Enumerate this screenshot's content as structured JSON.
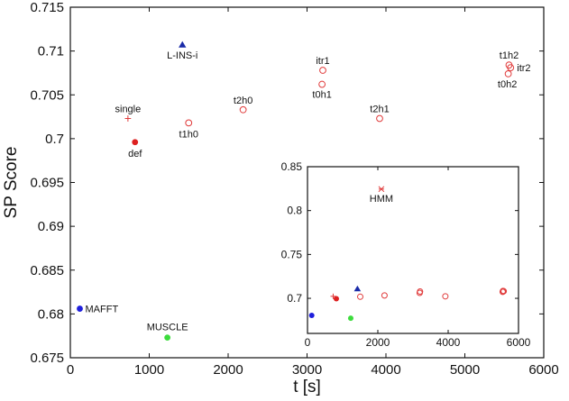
{
  "chart_data": [
    {
      "type": "scatter",
      "title": "",
      "xlabel": "t [s]",
      "ylabel": "SP Score",
      "xlim": [
        0,
        6000
      ],
      "ylim": [
        0.675,
        0.715
      ],
      "xticks": [
        "0",
        "1000",
        "2000",
        "3000",
        "4000",
        "5000",
        "6000"
      ],
      "yticks": [
        "0.675",
        "0.68",
        "0.685",
        "0.69",
        "0.695",
        "0.7",
        "0.705",
        "0.71",
        "0.715"
      ],
      "grid": false,
      "points": [
        {
          "label": "MAFFT",
          "x": 120,
          "y": 0.6806,
          "marker": "filled-circle",
          "color": "#1f1fdc"
        },
        {
          "label": "MUSCLE",
          "x": 1230,
          "y": 0.6773,
          "marker": "filled-circle",
          "color": "#3ddc3d"
        },
        {
          "label": "def",
          "x": 820,
          "y": 0.6996,
          "marker": "filled-circle",
          "color": "#dd2020"
        },
        {
          "label": "single",
          "x": 730,
          "y": 0.7023,
          "marker": "plus",
          "color": "#e03a3a"
        },
        {
          "label": "L-INS-i",
          "x": 1420,
          "y": 0.7107,
          "marker": "filled-triangle",
          "color": "#1a2ba8"
        },
        {
          "label": "t1h0",
          "x": 1500,
          "y": 0.7018,
          "marker": "open-circle",
          "color": "#e03a3a"
        },
        {
          "label": "t2h0",
          "x": 2190,
          "y": 0.7033,
          "marker": "open-circle",
          "color": "#e03a3a"
        },
        {
          "label": "itr1",
          "x": 3200,
          "y": 0.7078,
          "marker": "open-circle",
          "color": "#e03a3a"
        },
        {
          "label": "t0h1",
          "x": 3190,
          "y": 0.7062,
          "marker": "open-circle",
          "color": "#e03a3a"
        },
        {
          "label": "t2h1",
          "x": 3920,
          "y": 0.7023,
          "marker": "open-circle",
          "color": "#e03a3a"
        },
        {
          "label": "t1h2",
          "x": 5560,
          "y": 0.7084,
          "marker": "open-circle",
          "color": "#e03a3a"
        },
        {
          "label": "itr2",
          "x": 5580,
          "y": 0.7081,
          "marker": "open-circle",
          "color": "#e03a3a"
        },
        {
          "label": "t0h2",
          "x": 5550,
          "y": 0.7074,
          "marker": "open-circle",
          "color": "#e03a3a"
        }
      ]
    },
    {
      "type": "scatter",
      "title": "",
      "xlabel": "",
      "ylabel": "",
      "xlim": [
        0,
        6000
      ],
      "ylim": [
        0.66,
        0.85
      ],
      "xticks": [
        "0",
        "2000",
        "4000",
        "6000"
      ],
      "yticks": [
        "0.7",
        "0.75",
        "0.8",
        "0.85"
      ],
      "grid": false,
      "points": [
        {
          "label": "HMM",
          "x": 2100,
          "y": 0.8245,
          "marker": "cross",
          "color": "#e03a3a"
        },
        {
          "label": "",
          "x": 120,
          "y": 0.6806,
          "marker": "filled-circle",
          "color": "#1f1fdc"
        },
        {
          "label": "",
          "x": 1230,
          "y": 0.6773,
          "marker": "filled-circle",
          "color": "#3ddc3d"
        },
        {
          "label": "",
          "x": 820,
          "y": 0.6996,
          "marker": "filled-circle",
          "color": "#dd2020"
        },
        {
          "label": "",
          "x": 730,
          "y": 0.7023,
          "marker": "plus",
          "color": "#e03a3a"
        },
        {
          "label": "",
          "x": 1420,
          "y": 0.7107,
          "marker": "filled-triangle",
          "color": "#1a2ba8"
        },
        {
          "label": "",
          "x": 1500,
          "y": 0.7018,
          "marker": "open-circle",
          "color": "#e03a3a"
        },
        {
          "label": "",
          "x": 2190,
          "y": 0.7033,
          "marker": "open-circle",
          "color": "#e03a3a"
        },
        {
          "label": "",
          "x": 3200,
          "y": 0.7078,
          "marker": "open-circle",
          "color": "#e03a3a"
        },
        {
          "label": "",
          "x": 3190,
          "y": 0.7062,
          "marker": "open-circle",
          "color": "#e03a3a"
        },
        {
          "label": "",
          "x": 3920,
          "y": 0.7023,
          "marker": "open-circle",
          "color": "#e03a3a"
        },
        {
          "label": "",
          "x": 5560,
          "y": 0.7084,
          "marker": "open-circle",
          "color": "#e03a3a"
        },
        {
          "label": "",
          "x": 5580,
          "y": 0.7081,
          "marker": "open-circle",
          "color": "#e03a3a"
        },
        {
          "label": "",
          "x": 5550,
          "y": 0.7074,
          "marker": "open-circle",
          "color": "#e03a3a"
        }
      ]
    }
  ]
}
